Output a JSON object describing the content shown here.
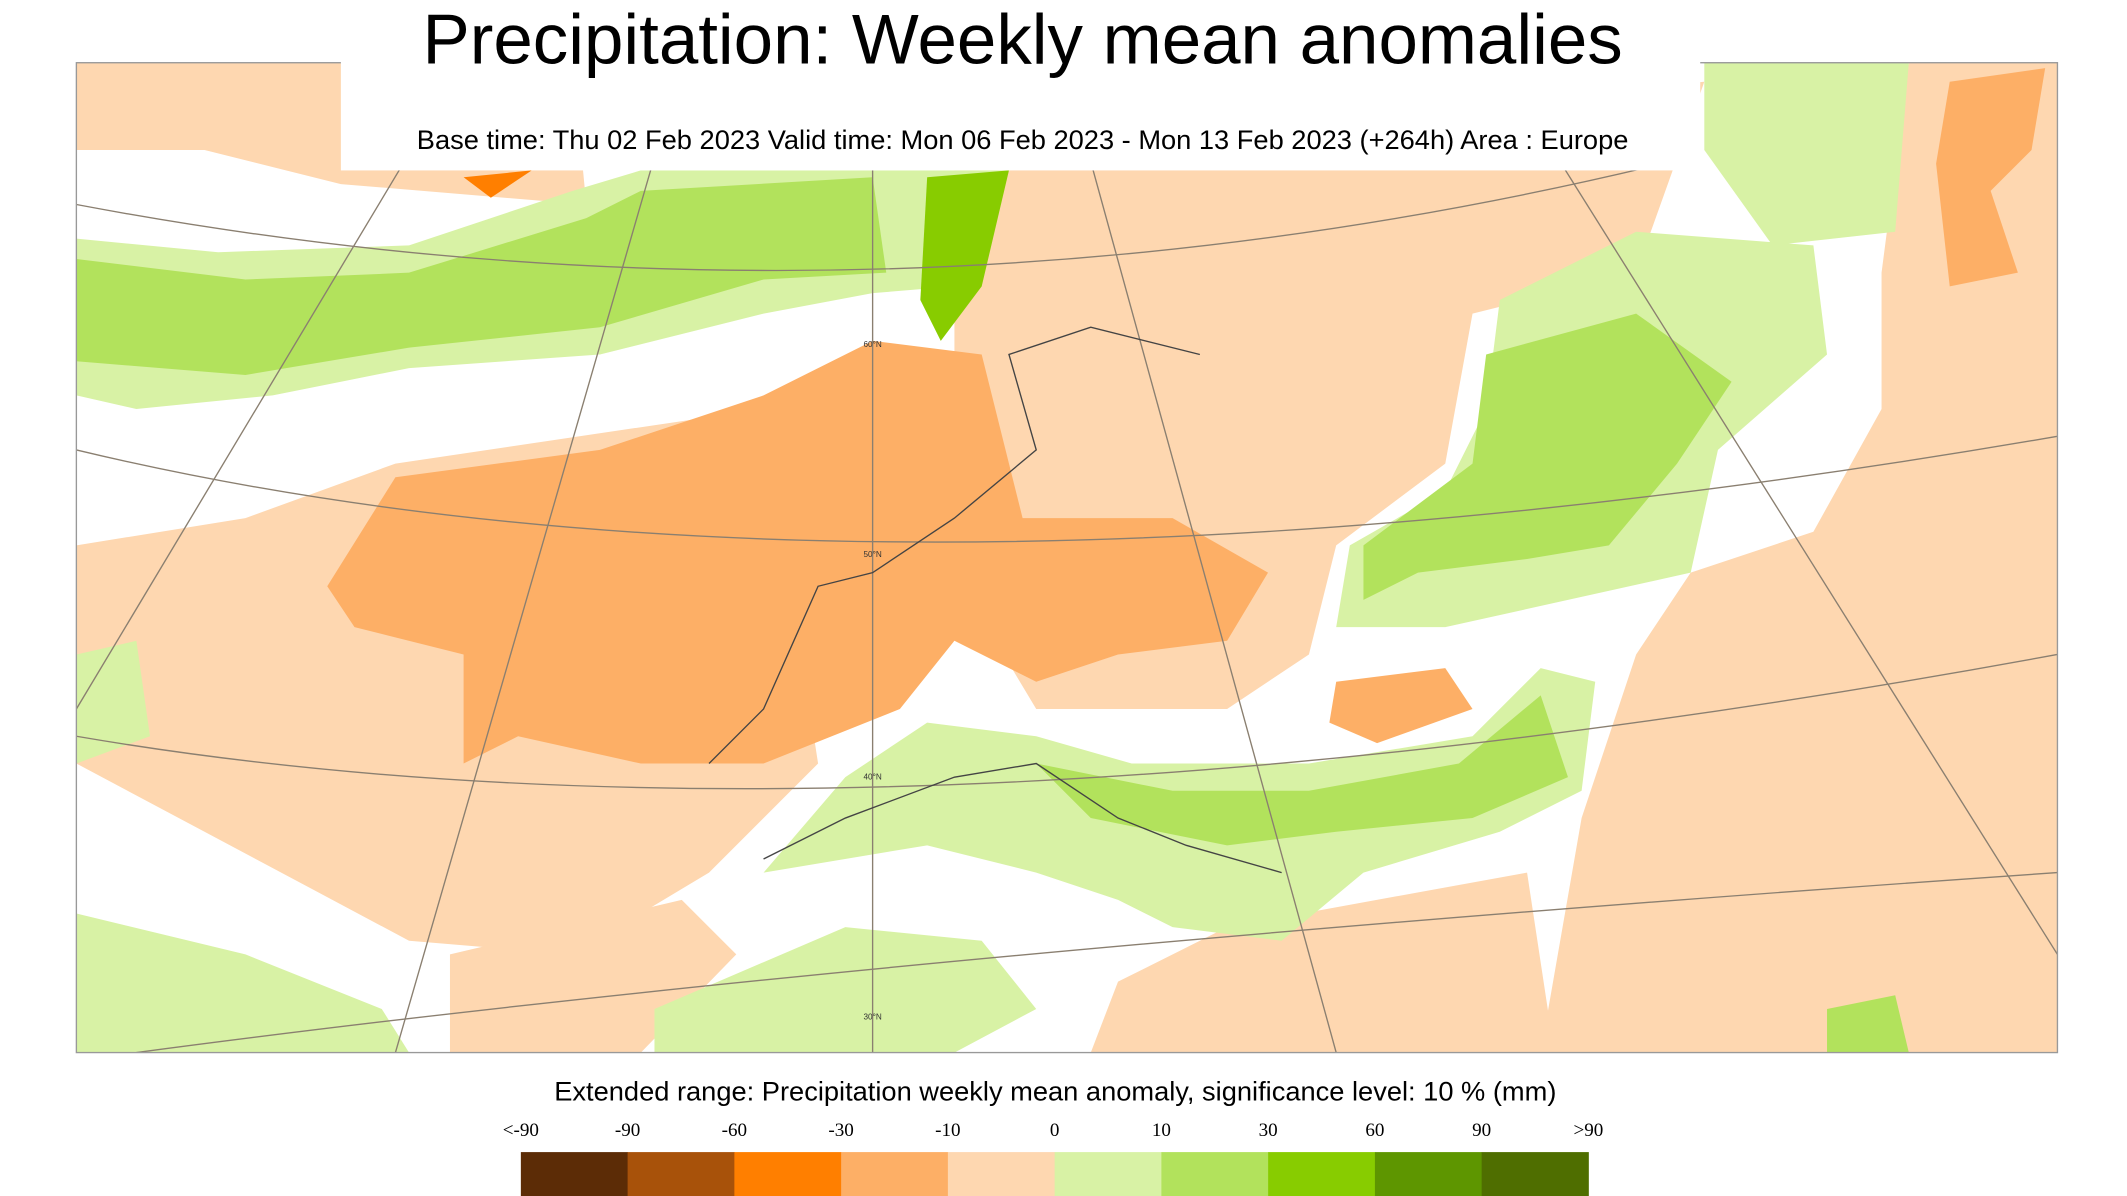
{
  "header": {
    "title": "Precipitation: Weekly mean anomalies",
    "subtitle": "Base time: Thu 02 Feb 2023 Valid time: Mon 06 Feb 2023 - Mon 13 Feb 2023 (+264h) Area : Europe"
  },
  "map": {
    "latitude_labels": [
      "60°N",
      "50°N",
      "40°N",
      "30°N"
    ]
  },
  "legend": {
    "title": "Extended range: Precipitation weekly mean anomaly, significance level: 10 % (mm)",
    "labels": [
      "<-90",
      "-90",
      "-60",
      "-30",
      "-10",
      "0",
      "10",
      "30",
      "60",
      "90",
      ">90"
    ],
    "colors": [
      "#5c2c06",
      "#a8520a",
      "#ff7f00",
      "#fdaf66",
      "#fed7b0",
      "#d8f2a5",
      "#b2e25c",
      "#88cc00",
      "#5e9600",
      "#4f6e00"
    ]
  }
}
